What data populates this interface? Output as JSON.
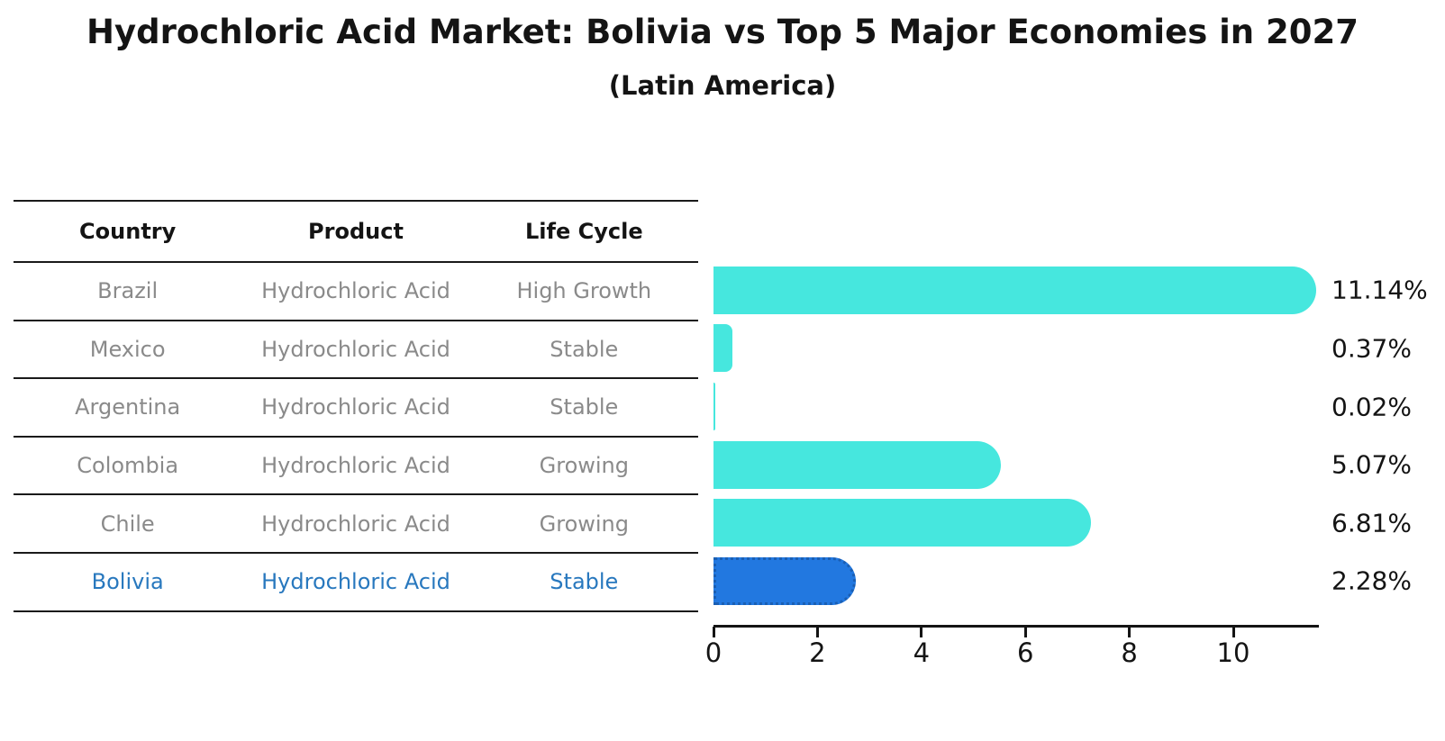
{
  "title": "Hydrochloric Acid Market: Bolivia vs Top 5 Major Economies in 2027",
  "subtitle": "(Latin America)",
  "table": {
    "headers": [
      "Country",
      "Product",
      "Life Cycle"
    ],
    "rows": [
      {
        "country": "Brazil",
        "product": "Hydrochloric Acid",
        "life_cycle": "High Growth",
        "highlighted": false
      },
      {
        "country": "Mexico",
        "product": "Hydrochloric Acid",
        "life_cycle": "Stable",
        "highlighted": false
      },
      {
        "country": "Argentina",
        "product": "Hydrochloric Acid",
        "life_cycle": "Stable",
        "highlighted": false
      },
      {
        "country": "Colombia",
        "product": "Hydrochloric Acid",
        "life_cycle": "Growing",
        "highlighted": false
      },
      {
        "country": "Chile",
        "product": "Hydrochloric Acid",
        "life_cycle": "Growing",
        "highlighted": false
      },
      {
        "country": "Bolivia",
        "product": "Hydrochloric Acid",
        "life_cycle": "Stable",
        "highlighted": true
      }
    ]
  },
  "chart_data": {
    "type": "bar",
    "orientation": "horizontal",
    "title": "Hydrochloric Acid Market: Bolivia vs Top 5 Major Economies in 2027",
    "subtitle": "(Latin America)",
    "categories": [
      "Brazil",
      "Mexico",
      "Argentina",
      "Colombia",
      "Chile",
      "Bolivia"
    ],
    "values": [
      11.14,
      0.37,
      0.02,
      5.07,
      6.81,
      2.28
    ],
    "value_labels": [
      "11.14%",
      "0.37%",
      "0.02%",
      "5.07%",
      "6.81%",
      "2.28%"
    ],
    "highlight_category": "Bolivia",
    "xticks": [
      0,
      2,
      4,
      6,
      8,
      10
    ],
    "xlim": [
      0,
      11.65
    ],
    "grid": false,
    "legend": "none",
    "bar_color": "#46E7DE",
    "highlight_bar_color": "#2278E0",
    "highlight_bar_border": "#1A5FB4"
  },
  "colors": {
    "highlight_text": "#2878BE",
    "table_text": "#8A8A8A",
    "axis": "#141414"
  }
}
